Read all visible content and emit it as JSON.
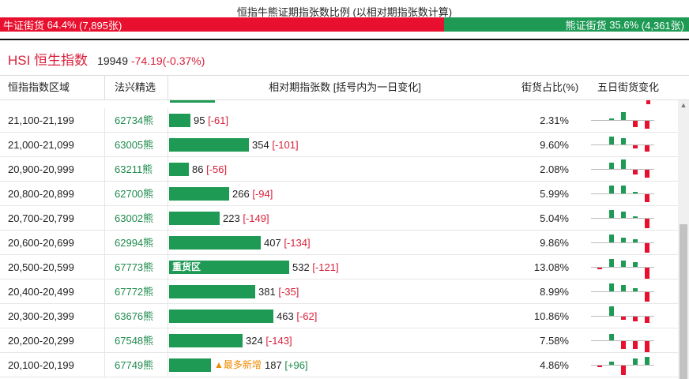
{
  "header": {
    "title": "恒指牛熊证期指张数比例 (以相对期指张数计算)",
    "bull": {
      "label": "牛证街货",
      "pct_text": "64.4%",
      "count_text": "(7,895张)",
      "fraction": 0.644
    },
    "bear": {
      "label": "熊证街货",
      "pct_text": "35.6%",
      "count_text": "(4,361张)",
      "fraction": 0.356
    }
  },
  "index": {
    "name": "HSI 恒生指数",
    "value": "19949",
    "change": "-74.19(-0.37%)"
  },
  "table": {
    "columns": {
      "range": "恒指指数区域",
      "pick": "法兴精选",
      "bars": "相对期指张数 [括号内为一日变化]",
      "ratio": "街货占比(%)",
      "change5d": "五日街货变化"
    },
    "scale_max": 560,
    "rows": [
      {
        "range": "21,100-21,199",
        "pick": "62734熊",
        "count": 95,
        "delta": -61,
        "delta_text": "[-61]",
        "ratio": "2.31%",
        "label": "",
        "tag": "",
        "mini": [
          0,
          2,
          10,
          -8,
          -10
        ]
      },
      {
        "range": "21,000-21,099",
        "pick": "63005熊",
        "count": 354,
        "delta": -101,
        "delta_text": "[-101]",
        "ratio": "9.60%",
        "label": "",
        "tag": "",
        "mini": [
          0,
          10,
          8,
          -4,
          -8
        ]
      },
      {
        "range": "20,900-20,999",
        "pick": "63211熊",
        "count": 86,
        "delta": -56,
        "delta_text": "[-56]",
        "ratio": "2.08%",
        "label": "",
        "tag": "",
        "mini": [
          0,
          8,
          12,
          -6,
          -10
        ]
      },
      {
        "range": "20,800-20,899",
        "pick": "62700熊",
        "count": 266,
        "delta": -94,
        "delta_text": "[-94]",
        "ratio": "5.99%",
        "label": "",
        "tag": "",
        "mini": [
          0,
          10,
          10,
          2,
          -10
        ]
      },
      {
        "range": "20,700-20,799",
        "pick": "63002熊",
        "count": 223,
        "delta": -149,
        "delta_text": "[-149]",
        "ratio": "5.04%",
        "label": "",
        "tag": "",
        "mini": [
          0,
          10,
          8,
          2,
          -12
        ]
      },
      {
        "range": "20,600-20,699",
        "pick": "62994熊",
        "count": 407,
        "delta": -134,
        "delta_text": "[-134]",
        "ratio": "9.86%",
        "label": "",
        "tag": "",
        "mini": [
          0,
          10,
          6,
          4,
          -12
        ]
      },
      {
        "range": "20,500-20,599",
        "pick": "67773熊",
        "count": 532,
        "delta": -121,
        "delta_text": "[-121]",
        "ratio": "13.08%",
        "label": "重货区",
        "tag": "",
        "mini": [
          -2,
          10,
          8,
          6,
          -14
        ]
      },
      {
        "range": "20,400-20,499",
        "pick": "67772熊",
        "count": 381,
        "delta": -35,
        "delta_text": "[-35]",
        "ratio": "8.99%",
        "label": "",
        "tag": "",
        "mini": [
          0,
          10,
          8,
          4,
          -12
        ]
      },
      {
        "range": "20,300-20,399",
        "pick": "63676熊",
        "count": 463,
        "delta": -62,
        "delta_text": "[-62]",
        "ratio": "10.86%",
        "label": "",
        "tag": "",
        "mini": [
          0,
          12,
          -4,
          -6,
          -8
        ]
      },
      {
        "range": "20,200-20,299",
        "pick": "67548熊",
        "count": 324,
        "delta": -143,
        "delta_text": "[-143]",
        "ratio": "7.58%",
        "label": "",
        "tag": "",
        "mini": [
          0,
          8,
          -10,
          -10,
          -14
        ]
      },
      {
        "range": "20,100-20,199",
        "pick": "67749熊",
        "count": 187,
        "delta": 96,
        "delta_text": "[+96]",
        "ratio": "4.86%",
        "label": "",
        "tag": "▲最多新增",
        "mini": [
          -2,
          4,
          -12,
          8,
          10
        ]
      }
    ]
  },
  "colors": {
    "bull": "#e8102e",
    "bear": "#1e9a55",
    "accent": "#d9203a"
  }
}
